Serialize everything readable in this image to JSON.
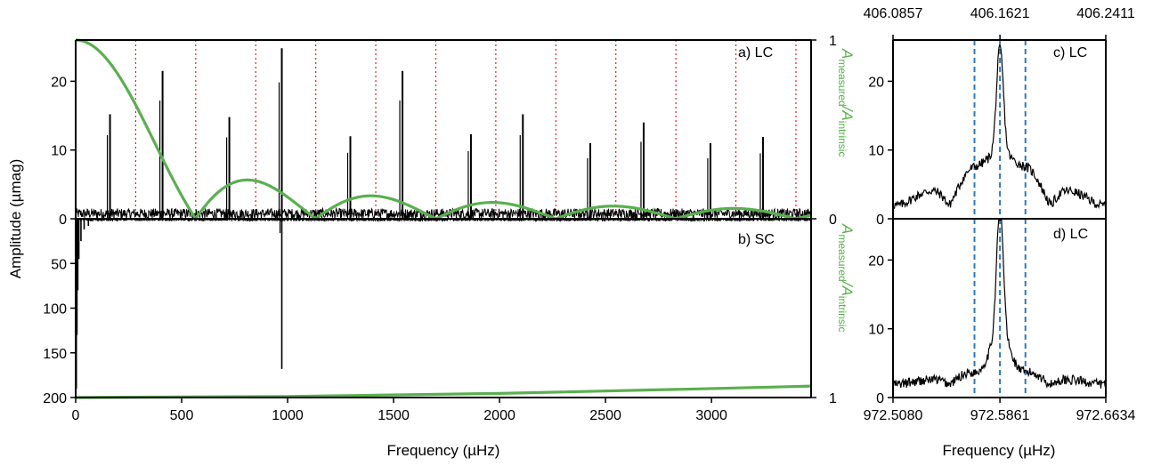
{
  "colors": {
    "spectrum": "#000000",
    "window": "#59b04e",
    "nyquist": "#d62728",
    "marker": "#2b7bba"
  },
  "chart_data": [
    {
      "id": "a",
      "type": "line",
      "panel_label": "a) LC",
      "xlabel": "Frequency (µHz)",
      "ylabel": "Amplitude (µmag)",
      "y2label_base": "A",
      "y2label_num": "measured",
      "y2label_sep": "/A",
      "y2label_den": "intrinsic",
      "xlim": [
        0,
        3470
      ],
      "ylim": [
        0,
        26
      ],
      "y2lim": [
        0,
        1
      ],
      "y_ticks": [
        0,
        10,
        20
      ],
      "y2_ticks": [
        0,
        1
      ],
      "nyquist_lines": [
        283.2,
        566.4,
        849.6,
        1132.8,
        1416.0,
        1699.2,
        1982.4,
        2265.6,
        2548.8,
        2832.0,
        3115.2,
        3398.4
      ],
      "window_function": {
        "name": "sinc",
        "zero_spacing": 566.4
      },
      "peaks": [
        {
          "x": 162,
          "amp": 15.2
        },
        {
          "x": 410,
          "amp": 21.5
        },
        {
          "x": 725,
          "amp": 14.8
        },
        {
          "x": 972.59,
          "amp": 24.8
        },
        {
          "x": 1296,
          "amp": 12.0
        },
        {
          "x": 1542,
          "amp": 21.5
        },
        {
          "x": 1865,
          "amp": 12.3
        },
        {
          "x": 2110,
          "amp": 15.2
        },
        {
          "x": 2428,
          "amp": 11.0
        },
        {
          "x": 2680,
          "amp": 14.0
        },
        {
          "x": 2995,
          "amp": 11.0
        },
        {
          "x": 3243,
          "amp": 11.9
        }
      ],
      "noise_level": 1.0
    },
    {
      "id": "b",
      "type": "line",
      "panel_label": "b) SC",
      "y_inverted": true,
      "ylim": [
        0,
        200
      ],
      "y_ticks": [
        50,
        100,
        150,
        200
      ],
      "x_ticks": [
        0,
        500,
        1000,
        1500,
        2000,
        2500,
        3000
      ],
      "y2_ticks": [
        1
      ],
      "y2label_base": "A",
      "y2label_num": "measured",
      "y2label_sep": "/A",
      "y2label_den": "intrinsic",
      "peaks": [
        {
          "x": 972.59,
          "amp": 168
        }
      ],
      "low_freq_excess": [
        {
          "x": 3,
          "amp": 190
        },
        {
          "x": 6,
          "amp": 130
        },
        {
          "x": 10,
          "amp": 80
        },
        {
          "x": 15,
          "amp": 45
        },
        {
          "x": 25,
          "amp": 25
        },
        {
          "x": 40,
          "amp": 12
        },
        {
          "x": 60,
          "amp": 8
        }
      ],
      "window_curve": [
        {
          "x": 0,
          "y2": 1.0
        },
        {
          "x": 1000,
          "y2": 0.994
        },
        {
          "x": 2000,
          "y2": 0.977
        },
        {
          "x": 3000,
          "y2": 0.95
        },
        {
          "x": 3470,
          "y2": 0.936
        }
      ]
    },
    {
      "id": "c",
      "type": "line",
      "panel_label": "c) LC",
      "top_ticks": [
        "406.0857",
        "406.1621",
        "406.2411"
      ],
      "xlim": [
        972.508,
        972.6634
      ],
      "ylim": [
        0,
        26
      ],
      "y_ticks": [
        0,
        10,
        20
      ],
      "markers": [
        972.5675,
        972.5861,
        972.6047
      ],
      "peak_center": 972.5861,
      "peak_amp": 22.7,
      "sidelobes": [
        {
          "x": 972.5675,
          "amp": 7.5
        },
        {
          "x": 972.6047,
          "amp": 7.6
        }
      ]
    },
    {
      "id": "d",
      "type": "line",
      "panel_label": "d) LC",
      "xlabel": "Frequency (µHz)",
      "xlim": [
        972.508,
        972.6634
      ],
      "ylim": [
        0,
        26
      ],
      "y_ticks": [
        0,
        10,
        20
      ],
      "x_ticks": [
        "972.5080",
        "972.5861",
        "972.6634"
      ],
      "markers": [
        972.5675,
        972.5861,
        972.6047
      ],
      "peak_center": 972.5861,
      "peak_amp": 25.5
    }
  ]
}
